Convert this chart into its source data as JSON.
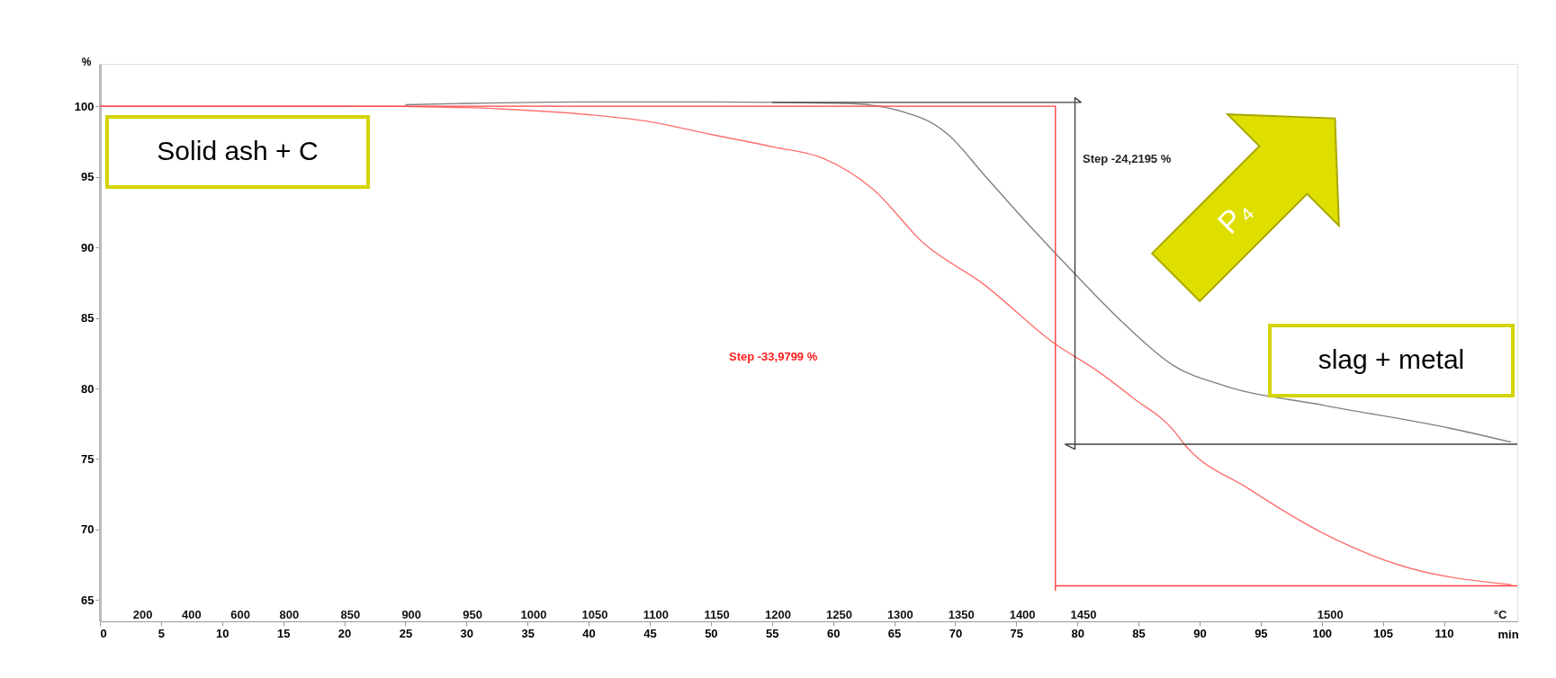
{
  "chart_data": {
    "type": "line",
    "xlabel": "min",
    "ylabel": "%",
    "xlim": [
      0,
      116
    ],
    "xticks": [
      0,
      5,
      10,
      15,
      20,
      25,
      30,
      35,
      40,
      45,
      50,
      55,
      60,
      65,
      70,
      75,
      80,
      85,
      90,
      95,
      100,
      105,
      110
    ],
    "ylim": [
      63.5,
      103
    ],
    "yticks": [
      65,
      70,
      75,
      80,
      85,
      90,
      95,
      100
    ],
    "series": [
      {
        "color": "#ff7070",
        "x": [
          0,
          10,
          20,
          30,
          33,
          40,
          45,
          50,
          55.2,
          59.2,
          63.3,
          67.4,
          72.3,
          78.1,
          81.7,
          84.6,
          87.9,
          88.7,
          94,
          100.2,
          106.3,
          115.5
        ],
        "values": [
          100,
          100,
          100,
          99.9,
          99.8,
          99.4,
          98.9,
          98.0,
          97.1,
          96.3,
          94.1,
          90.3,
          87.4,
          83.2,
          81.2,
          79.3,
          77.0,
          76.1,
          72.9,
          69.7,
          67.5,
          66.1
        ]
      },
      {
        "color": "#808080",
        "x": [
          25,
          30,
          40,
          50,
          61.3,
          67.4,
          69.4,
          72.3,
          75.6,
          79.7,
          83.8,
          87.9,
          92,
          100.2,
          110.4,
          115.5
        ],
        "values": [
          100.1,
          100.2,
          100.3,
          100.3,
          100.2,
          99.1,
          98.0,
          95.2,
          92.0,
          88.2,
          84.6,
          81.6,
          80.2,
          78.8,
          77.2,
          76.2
        ]
      },
      {
        "color": "#ff4040",
        "x": [
          0,
          78.2,
          78.2,
          78.2,
          116
        ],
        "values": [
          100,
          100,
          65.7,
          66.02,
          66.02
        ]
      },
      {
        "color": "#404040",
        "x": [
          55,
          80.3,
          79.8,
          79.8,
          79,
          116
        ],
        "values": [
          100.27,
          100.27,
          100.6,
          75.7,
          76.05,
          76.05
        ]
      }
    ],
    "marker": "none",
    "line_style": "solid",
    "grid": false,
    "annotations": [
      "Step   -33,9799 %",
      "Step   -24,2195 %",
      "Solid ash + C",
      "P₄",
      "slag + metal",
      "200",
      "400",
      "600",
      "800",
      "850",
      "900",
      "950",
      "1000",
      "1050",
      "1100",
      "1150",
      "1200",
      "1250",
      "1300",
      "1350",
      "1400",
      "1450",
      "1500",
      "°C"
    ]
  }
}
